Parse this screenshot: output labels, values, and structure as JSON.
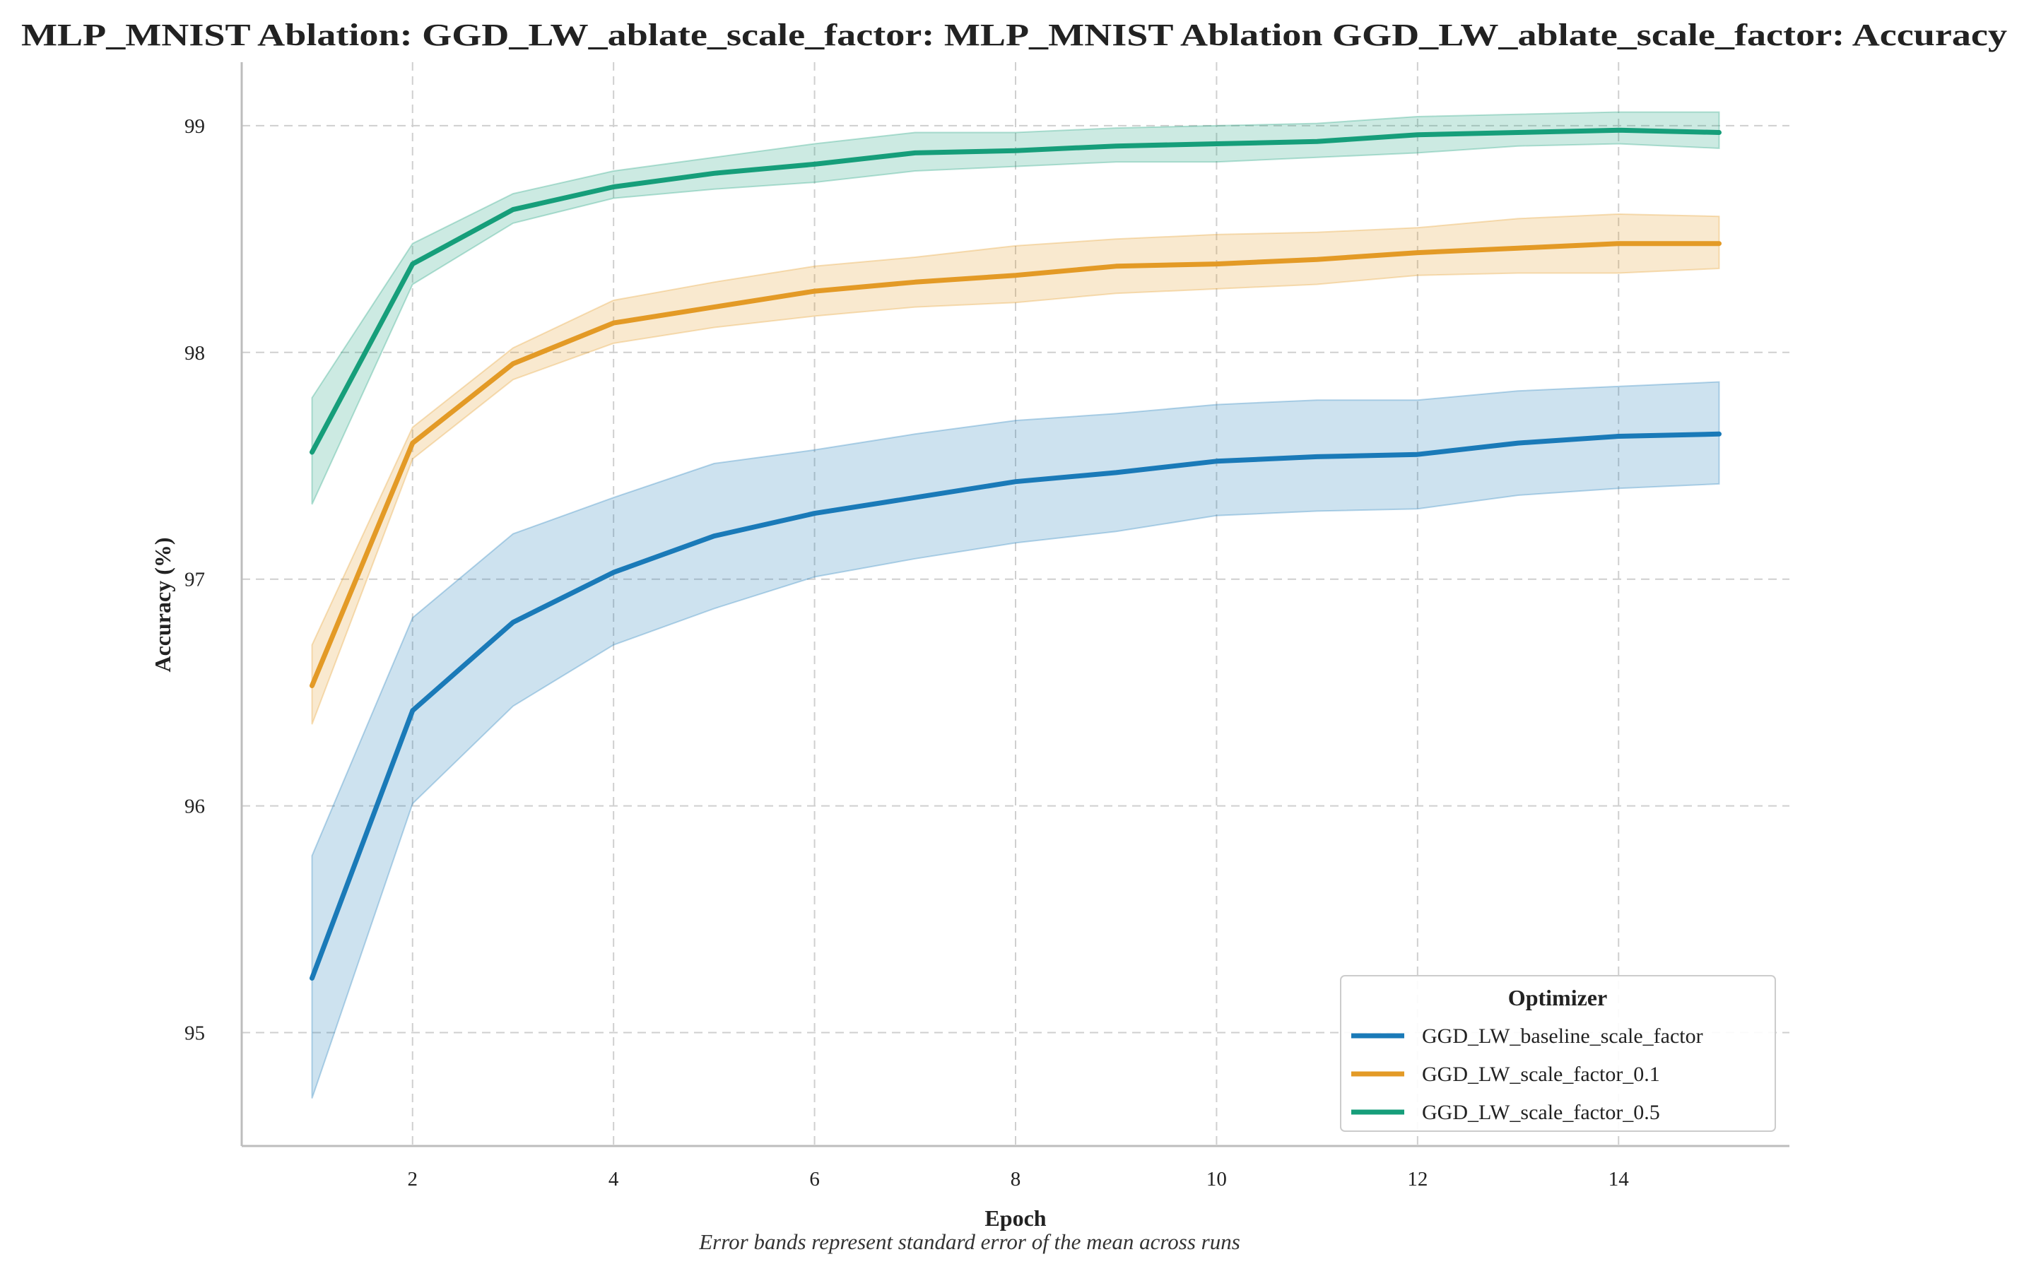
{
  "chart_data": {
    "type": "line",
    "title": "MLP_MNIST Ablation: GGD_LW_ablate_scale_factor: MLP_MNIST Ablation GGD_LW_ablate_scale_factor: Accuracy",
    "xlabel": "Epoch",
    "ylabel": "Accuracy (%)",
    "caption": "Error bands represent standard error of the mean across runs",
    "xlim": [
      0.3,
      15.7
    ],
    "ylim": [
      94.5,
      99.28
    ],
    "x_ticks": [
      2,
      4,
      6,
      8,
      10,
      12,
      14
    ],
    "x_tick_labels": [
      "2",
      "4",
      "6",
      "8",
      "10",
      "12",
      "14"
    ],
    "y_ticks": [
      95,
      96,
      97,
      98,
      99
    ],
    "y_tick_labels": [
      "95",
      "96",
      "97",
      "98",
      "99"
    ],
    "grid": true,
    "legend": {
      "title": "Optimizer",
      "position": "lower-right"
    },
    "x": [
      1,
      2,
      3,
      4,
      5,
      6,
      7,
      8,
      9,
      10,
      11,
      12,
      13,
      14,
      15
    ],
    "series": [
      {
        "name": "GGD_LW_baseline_scale_factor",
        "color": "#1a7ab8",
        "values": [
          95.24,
          96.42,
          96.81,
          97.03,
          97.19,
          97.29,
          97.36,
          97.43,
          97.47,
          97.52,
          97.54,
          97.55,
          97.6,
          97.63,
          97.64
        ],
        "lower": [
          94.71,
          96.01,
          96.44,
          96.71,
          96.87,
          97.01,
          97.09,
          97.16,
          97.21,
          97.28,
          97.3,
          97.31,
          97.37,
          97.4,
          97.42
        ],
        "upper": [
          95.78,
          96.83,
          97.2,
          97.36,
          97.51,
          97.57,
          97.64,
          97.7,
          97.73,
          97.77,
          97.79,
          97.79,
          97.83,
          97.85,
          97.87
        ]
      },
      {
        "name": "GGD_LW_scale_factor_0.1",
        "color": "#e39a26",
        "values": [
          96.53,
          97.6,
          97.95,
          98.13,
          98.2,
          98.27,
          98.31,
          98.34,
          98.38,
          98.39,
          98.41,
          98.44,
          98.46,
          98.48,
          98.48
        ],
        "lower": [
          96.36,
          97.53,
          97.88,
          98.04,
          98.11,
          98.16,
          98.2,
          98.22,
          98.26,
          98.28,
          98.3,
          98.34,
          98.35,
          98.35,
          98.37
        ],
        "upper": [
          96.71,
          97.67,
          98.02,
          98.23,
          98.31,
          98.38,
          98.42,
          98.47,
          98.5,
          98.52,
          98.53,
          98.55,
          98.59,
          98.61,
          98.6
        ]
      },
      {
        "name": "GGD_LW_scale_factor_0.5",
        "color": "#169e7a",
        "values": [
          97.56,
          98.39,
          98.63,
          98.73,
          98.79,
          98.83,
          98.88,
          98.89,
          98.91,
          98.92,
          98.93,
          98.96,
          98.97,
          98.98,
          98.97
        ],
        "lower": [
          97.33,
          98.3,
          98.57,
          98.68,
          98.72,
          98.75,
          98.8,
          98.82,
          98.84,
          98.84,
          98.86,
          98.88,
          98.91,
          98.92,
          98.9
        ],
        "upper": [
          97.8,
          98.48,
          98.7,
          98.8,
          98.86,
          98.92,
          98.97,
          98.97,
          98.99,
          99.0,
          99.01,
          99.04,
          99.05,
          99.06,
          99.06
        ]
      }
    ]
  }
}
